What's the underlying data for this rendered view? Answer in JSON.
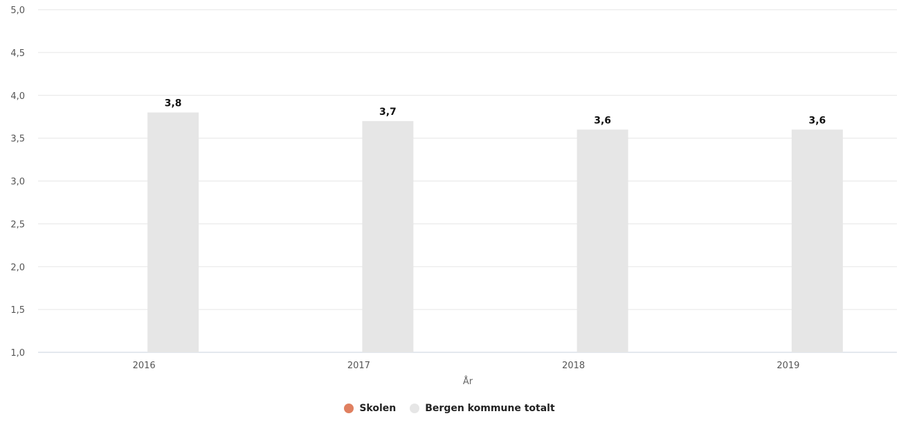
{
  "chart_data": {
    "type": "bar",
    "categories": [
      "2016",
      "2017",
      "2018",
      "2019"
    ],
    "series": [
      {
        "name": "Skolen",
        "values": [
          null,
          null,
          null,
          null
        ],
        "color": "#e08060"
      },
      {
        "name": "Bergen kommune totalt",
        "values": [
          3.8,
          3.7,
          3.6,
          3.6
        ],
        "labels": [
          "3,8",
          "3,7",
          "3,6",
          "3,6"
        ],
        "color": "#e6e6e6"
      }
    ],
    "title": "",
    "xlabel": "År",
    "ylabel": "",
    "ylim": [
      1.0,
      5.0
    ],
    "yticks": [
      "1,0",
      "1,5",
      "2,0",
      "2,5",
      "3,0",
      "3,5",
      "4,0",
      "4,5",
      "5,0"
    ],
    "grid": true,
    "legend_position": "bottom-center"
  }
}
